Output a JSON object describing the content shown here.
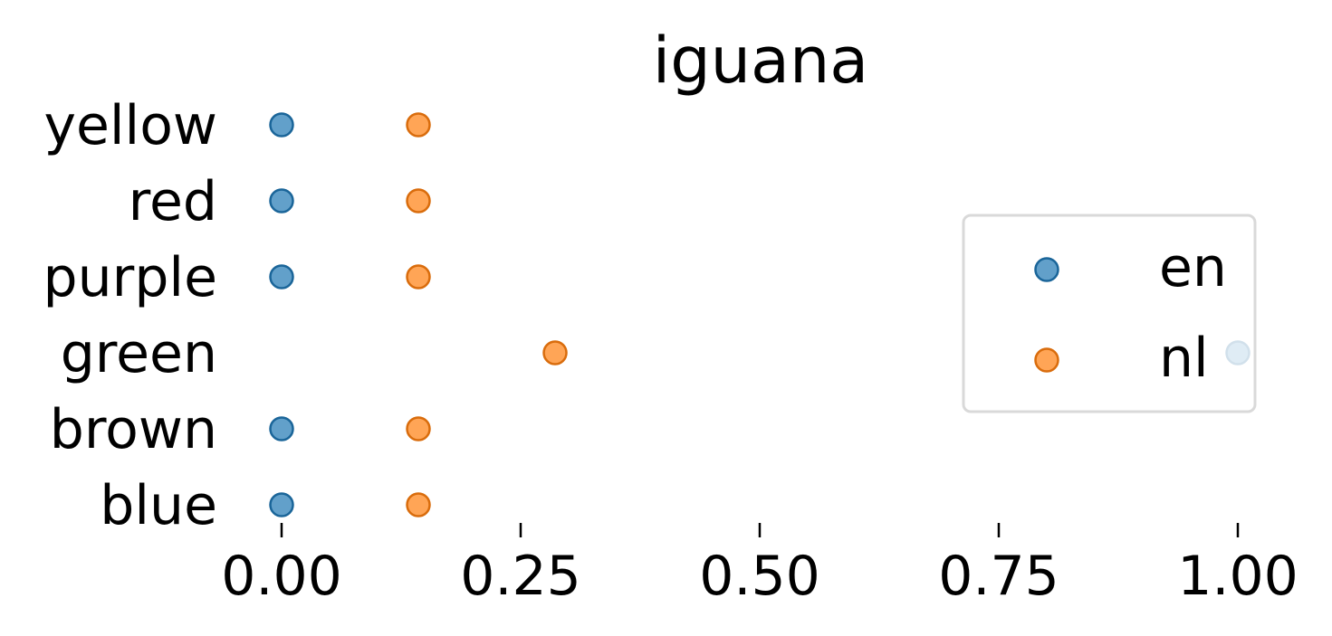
{
  "chart_data": {
    "type": "scatter",
    "title": "iguana",
    "xlabel": "",
    "ylabel": "",
    "categories": [
      "yellow",
      "red",
      "purple",
      "green",
      "brown",
      "blue"
    ],
    "xlim": [
      0.0,
      1.0
    ],
    "xticks": [
      0.0,
      0.25,
      0.5,
      0.75,
      1.0
    ],
    "xtick_labels": [
      "0.00",
      "0.25",
      "0.50",
      "0.75",
      "1.00"
    ],
    "series": [
      {
        "name": "en",
        "color": "#1f77b4",
        "points": [
          {
            "category": "yellow",
            "x": 0.0
          },
          {
            "category": "red",
            "x": 0.0
          },
          {
            "category": "purple",
            "x": 0.0
          },
          {
            "category": "green",
            "x": 1.0
          },
          {
            "category": "brown",
            "x": 0.0
          },
          {
            "category": "blue",
            "x": 0.0
          }
        ]
      },
      {
        "name": "nl",
        "color": "#ff7f0e",
        "points": [
          {
            "category": "yellow",
            "x": 0.143
          },
          {
            "category": "red",
            "x": 0.143
          },
          {
            "category": "purple",
            "x": 0.143
          },
          {
            "category": "green",
            "x": 0.286
          },
          {
            "category": "brown",
            "x": 0.143
          },
          {
            "category": "blue",
            "x": 0.143
          }
        ]
      }
    ],
    "grid": false,
    "legend_position": "right"
  }
}
